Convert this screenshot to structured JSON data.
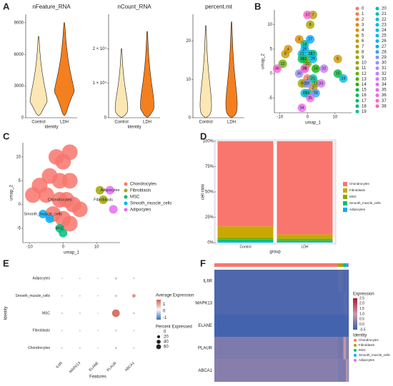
{
  "chart_data": [
    {
      "type": "violin",
      "panel": "A",
      "title": "nFeature_RNA",
      "x_label": "Identity",
      "categories": [
        "Control",
        "LDH"
      ],
      "colors": [
        "#fbe7b3",
        "#f47f1f"
      ],
      "min": [
        200,
        200
      ],
      "max": [
        7700,
        9000
      ],
      "mode": [
        1500,
        2500
      ],
      "ylim": [
        0,
        9800
      ],
      "yticks": [
        0,
        3000,
        6000,
        9000
      ]
    },
    {
      "type": "violin",
      "title": "nCount_RNA",
      "x_label": "Identity",
      "categories": [
        "Control",
        "LDH"
      ],
      "colors": [
        "#fbe7b3",
        "#f47f1f"
      ],
      "min": [
        100,
        100
      ],
      "max": [
        20000,
        25000
      ],
      "mode": [
        1500,
        2500
      ],
      "ylim": [
        0,
        30000
      ],
      "yticks": [
        0,
        {
          "value": 10000,
          "label": "1 × 10⁴"
        },
        {
          "value": 20000,
          "label": "2 × 10⁴"
        }
      ]
    },
    {
      "type": "violin",
      "title": "percent.mt",
      "categories": [
        "Control",
        "LDH"
      ],
      "colors": [
        "#fbe7b3",
        "#f47f1f"
      ],
      "min": [
        0,
        0
      ],
      "max": [
        24,
        25
      ],
      "mode": [
        1,
        1
      ],
      "ylim": [
        0,
        27
      ],
      "yticks": [
        0,
        10,
        20
      ]
    },
    {
      "type": "umap_clusters",
      "panel": "B",
      "x_label": "umap_1",
      "y_label": "umap_2",
      "xlim": [
        -12,
        16
      ],
      "ylim": [
        -8,
        13
      ],
      "xticks": [
        -10,
        0,
        10
      ],
      "yticks": [
        -5,
        0,
        5,
        10
      ],
      "labels": [
        "0",
        "1",
        "2",
        "3",
        "4",
        "5",
        "6",
        "7",
        "8",
        "9",
        "10",
        "11",
        "12",
        "13",
        "14",
        "15",
        "16",
        "17",
        "18",
        "19",
        "20",
        "21",
        "22",
        "23",
        "24",
        "25",
        "26",
        "27",
        "28",
        "29",
        "30",
        "31",
        "32",
        "33",
        "34",
        "35",
        "36",
        "37",
        "38"
      ],
      "x": [
        -1,
        0,
        2,
        -3,
        -7,
        11,
        -8,
        2,
        1,
        -2,
        0,
        3,
        -9,
        -1,
        3,
        11,
        -2,
        2,
        -1,
        0,
        2,
        -2,
        1,
        -1,
        13,
        2,
        -1,
        1,
        3,
        0,
        -3,
        -1,
        6,
        5,
        -2,
        1,
        -11,
        0,
        -1
      ],
      "y": [
        -2,
        -1,
        -3,
        7,
        5,
        3,
        4,
        12,
        10,
        -2,
        2,
        -2,
        2,
        3,
        1,
        0,
        3,
        4,
        6,
        -4,
        -1,
        4,
        4,
        -4,
        -1,
        3,
        5,
        7,
        -4,
        -2,
        0,
        1,
        1,
        -2,
        -7,
        -5,
        1,
        12,
        1
      ],
      "colors": [
        "#F8766D",
        "#F27D52",
        "#EA8331",
        "#E18A00",
        "#D89000",
        "#CE9600",
        "#C39B00",
        "#B79F00",
        "#ABA300",
        "#9DA700",
        "#8EAB00",
        "#7CAE00",
        "#66B200",
        "#49B500",
        "#13B800",
        "#00BA38",
        "#00BC56",
        "#00BE6C",
        "#00BF7F",
        "#00C091",
        "#00C1A2",
        "#00C0B2",
        "#00BFC2",
        "#00BDD0",
        "#00BADE",
        "#00B6EB",
        "#00B0F6",
        "#00A9FF",
        "#35A2FF",
        "#7099FF",
        "#9590FF",
        "#B186FF",
        "#C77CFF",
        "#D973FC",
        "#E76BF3",
        "#F265E8",
        "#FA62DB",
        "#FF61CC",
        "#FF62BC"
      ]
    },
    {
      "type": "umap_celltypes",
      "panel": "C",
      "x_label": "umap_1",
      "y_label": "umap_2",
      "xlim": [
        -12,
        17
      ],
      "ylim": [
        -8,
        13
      ],
      "xticks": [
        -10,
        0,
        10
      ],
      "yticks": [
        -5,
        0,
        5,
        10
      ],
      "series": [
        {
          "name": "Chondrocytes",
          "color": "#F8766D",
          "x": [
            -1,
            -2,
            0,
            2,
            -4,
            -1,
            2,
            -7,
            -9,
            -5,
            1,
            3,
            0,
            2,
            -3,
            5
          ],
          "y": [
            1,
            10,
            9,
            11,
            6,
            5,
            5,
            4,
            2,
            2,
            1,
            0,
            -3,
            -4,
            -2,
            -1
          ]
        },
        {
          "name": "Fibroblasts",
          "color": "#A3A500",
          "x": [
            12,
            11
          ],
          "y": [
            1,
            3
          ]
        },
        {
          "name": "MSC",
          "color": "#00BF7D",
          "x": [
            -1,
            0
          ],
          "y": [
            -5,
            -6
          ]
        },
        {
          "name": "Smooth_muscle_cells",
          "color": "#00B0F6",
          "x": [
            -6,
            -4
          ],
          "y": [
            -2,
            -3
          ]
        },
        {
          "name": "Adipocytes",
          "color": "#E76BF3",
          "x": [
            14,
            15
          ],
          "y": [
            3,
            -1
          ]
        }
      ]
    },
    {
      "type": "stacked_bar",
      "panel": "D",
      "x_label": "group",
      "y_label": "cell ratio",
      "categories": [
        "Control",
        "LDH"
      ],
      "ylim": [
        0,
        100
      ],
      "yticks": [
        {
          "value": 0,
          "label": "0%"
        },
        {
          "value": 25,
          "label": "25%"
        },
        {
          "value": 50,
          "label": "50%"
        },
        {
          "value": 75,
          "label": "75%"
        },
        {
          "value": 100,
          "label": "100%"
        }
      ],
      "series": [
        {
          "name": "Adipocytes",
          "color": "#00B0F6",
          "values": [
            1,
            0.5
          ]
        },
        {
          "name": "Smooth_muscle_cells",
          "color": "#00BF7D",
          "values": [
            2,
            1.5
          ]
        },
        {
          "name": "MSC",
          "color": "#7CAE00",
          "values": [
            2,
            2
          ]
        },
        {
          "name": "Fibroblasts",
          "color": "#C9A800",
          "values": [
            11,
            4
          ]
        },
        {
          "name": "Chondrocytes",
          "color": "#F8766D",
          "values": [
            84,
            92
          ]
        }
      ]
    },
    {
      "type": "dotplot",
      "panel": "E",
      "x_label": "Features",
      "y_label": "Identity",
      "features": [
        "IL6R",
        "MAPK13",
        "ELANE",
        "PLAUR",
        "ABCA1"
      ],
      "identities": [
        "Chondrocytes",
        "Fibroblasts",
        "MSC",
        "Smooth_muscle_cells",
        "Adipocytes"
      ],
      "avg_expression": [
        [
          -0.3,
          -0.4,
          -0.4,
          -0.5,
          -0.3
        ],
        [
          -0.3,
          -0.2,
          -0.4,
          -0.3,
          -0.3
        ],
        [
          -0.4,
          -0.3,
          -0.4,
          1.5,
          -0.4
        ],
        [
          -0.3,
          -0.3,
          -0.4,
          -0.2,
          1.2
        ],
        [
          -0.3,
          -0.3,
          -0.4,
          -0.3,
          -0.4
        ]
      ],
      "pct_expressed": [
        [
          0.5,
          0.3,
          0.1,
          1,
          0.5
        ],
        [
          0.5,
          0.5,
          0.1,
          1,
          0.5
        ],
        [
          0.5,
          0.5,
          0.1,
          55,
          1
        ],
        [
          0.3,
          0.3,
          0.1,
          3,
          8
        ],
        [
          0.3,
          0.3,
          0.1,
          2,
          0.5
        ]
      ],
      "color_title": "Average Expression",
      "colors": [
        "#3b6fb6",
        "#f7f7f7",
        "#d6604d"
      ],
      "clim": [
        -1.3,
        1.7
      ],
      "color_ticks": [
        1,
        0,
        -1
      ],
      "size_title": "Percent Expressed",
      "size_ticks": [
        0,
        20,
        40,
        60
      ]
    },
    {
      "type": "heatmap",
      "panel": "F",
      "genes": [
        "IL6R",
        "MAPK13",
        "ELANE",
        "PLAUR",
        "ABCA1"
      ],
      "identities": [
        "Chondrocytes",
        "Fibroblasts",
        "MSC",
        "Smooth_muscle_cells",
        "Adipocytes"
      ],
      "identity_colors": [
        "#F8766D",
        "#A3A500",
        "#00BF7D",
        "#00B0F6",
        "#E76BF3"
      ],
      "column_share": [
        92,
        4,
        2,
        1.5,
        0.5
      ],
      "values": [
        [
          -0.3,
          -0.2,
          -0.3,
          -0.3,
          -0.3
        ],
        [
          -0.3,
          -0.3,
          -0.2,
          -0.3,
          -0.3
        ],
        [
          -0.4,
          -0.4,
          -0.4,
          -0.4,
          -0.4
        ],
        [
          0.2,
          0.1,
          0.9,
          0.3,
          0.2
        ],
        [
          0.3,
          0.2,
          0.2,
          0.8,
          0.2
        ]
      ],
      "color_title": "Expression",
      "colors": [
        "#3b5fae",
        "#c99aa8",
        "#b2182b"
      ],
      "clim": [
        -0.5,
        2.5
      ],
      "color_ticks": [
        2.5,
        {
          "value": 2,
          "label": "2.0"
        },
        1.5,
        {
          "value": 1,
          "label": "1.0"
        },
        0.5,
        {
          "value": 0,
          "label": "0.0"
        },
        -0.5
      ],
      "legend_title": "Identity"
    }
  ]
}
